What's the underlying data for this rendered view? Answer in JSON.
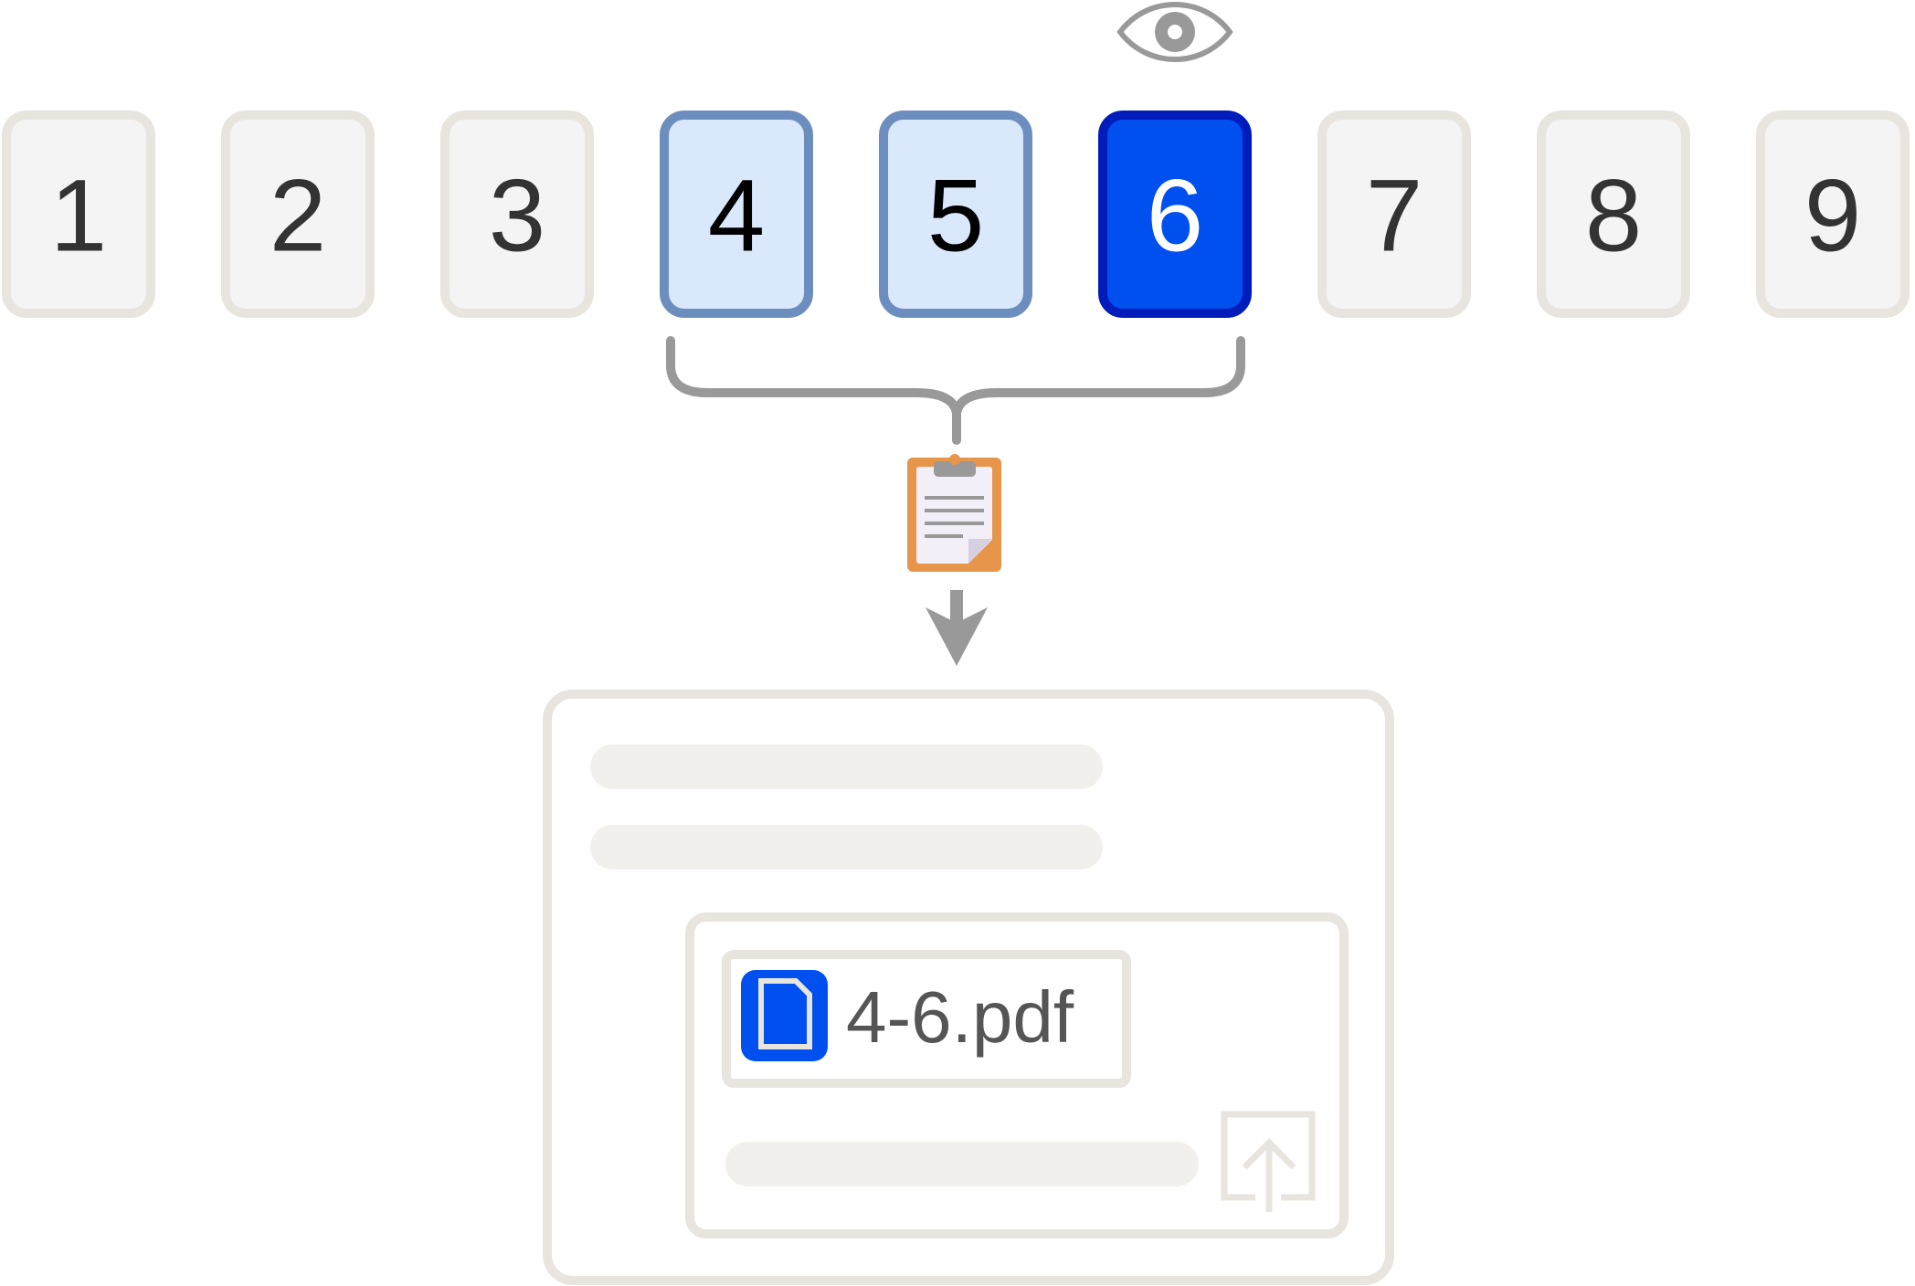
{
  "pages": [
    {
      "label": "1",
      "state": "default"
    },
    {
      "label": "2",
      "state": "default"
    },
    {
      "label": "3",
      "state": "default"
    },
    {
      "label": "4",
      "state": "selected"
    },
    {
      "label": "5",
      "state": "selected"
    },
    {
      "label": "6",
      "state": "active"
    },
    {
      "label": "7",
      "state": "default"
    },
    {
      "label": "8",
      "state": "default"
    },
    {
      "label": "9",
      "state": "default"
    }
  ],
  "attachment": {
    "file_name": "4-6.pdf"
  },
  "icons": {
    "preview": "eye-icon",
    "clipboard": "clipboard-icon",
    "file": "file-icon",
    "upload": "upload-icon"
  },
  "colors": {
    "default_fill": "#f4f4f4",
    "default_border": "#e8e5df",
    "default_text": "#333333",
    "selected_fill": "#dae8fc",
    "selected_border": "#6c8ebf",
    "selected_text": "#000000",
    "active_fill": "#0050ef",
    "active_border": "#001dbc",
    "active_text": "#ffffff",
    "connector": "#999999",
    "clipboard_orange": "#e6954a",
    "placeholder_bar": "#f2f0ec",
    "file_blue": "#0050ef",
    "file_name_text": "#555555"
  }
}
